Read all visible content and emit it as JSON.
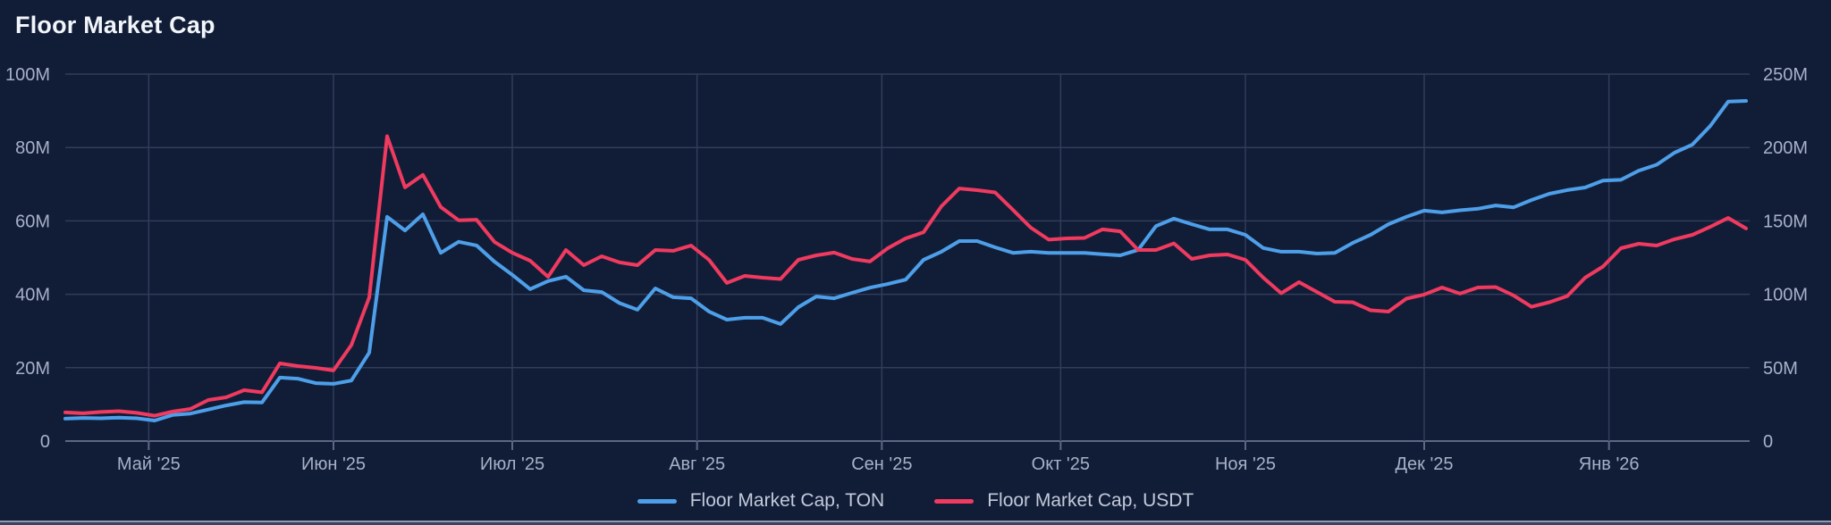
{
  "page": {
    "title": "Floor Market Cap"
  },
  "colors": {
    "background": "#111D37",
    "gridline": "#303C59",
    "axis_line": "#5C6985",
    "tick_label": "#A7B0C7",
    "title_text": "#F2F5FA",
    "legend_text": "#C2C9DA",
    "ton_line": "#4E9FE9",
    "usdt_line": "#F03A5F"
  },
  "chart_data": {
    "type": "line",
    "title": "Floor Market Cap",
    "x_type": "date",
    "grid": true,
    "legend_position": "bottom",
    "left_axis": {
      "min": 0,
      "max": 100,
      "tick_values": [
        0,
        20,
        40,
        60,
        80,
        100
      ],
      "tick_labels": [
        "0",
        "20M",
        "40M",
        "60M",
        "80M",
        "100M"
      ]
    },
    "right_axis": {
      "min": 0,
      "max": 250,
      "tick_values": [
        0,
        50,
        100,
        150,
        200,
        250
      ],
      "tick_labels": [
        "0",
        "50M",
        "100M",
        "150M",
        "200M",
        "250M"
      ]
    },
    "x_ticks": [
      {
        "label": "Май '25",
        "date": "2025-05-01"
      },
      {
        "label": "Июн '25",
        "date": "2025-06-01"
      },
      {
        "label": "Июл '25",
        "date": "2025-07-01"
      },
      {
        "label": "Авг '25",
        "date": "2025-08-01"
      },
      {
        "label": "Сен '25",
        "date": "2025-09-01"
      },
      {
        "label": "Окт '25",
        "date": "2025-10-01"
      },
      {
        "label": "Ноя '25",
        "date": "2025-11-01"
      },
      {
        "label": "Дек '25",
        "date": "2025-12-01"
      },
      {
        "label": "Янв '26",
        "date": "2026-01-01"
      }
    ],
    "dates": [
      "2025-04-17",
      "2025-04-20",
      "2025-04-23",
      "2025-04-26",
      "2025-04-29",
      "2025-05-02",
      "2025-05-05",
      "2025-05-08",
      "2025-05-11",
      "2025-05-14",
      "2025-05-17",
      "2025-05-20",
      "2025-05-23",
      "2025-05-26",
      "2025-05-29",
      "2025-06-01",
      "2025-06-04",
      "2025-06-07",
      "2025-06-10",
      "2025-06-13",
      "2025-06-16",
      "2025-06-19",
      "2025-06-22",
      "2025-06-25",
      "2025-06-28",
      "2025-07-01",
      "2025-07-04",
      "2025-07-07",
      "2025-07-10",
      "2025-07-13",
      "2025-07-16",
      "2025-07-19",
      "2025-07-22",
      "2025-07-25",
      "2025-07-28",
      "2025-07-31",
      "2025-08-03",
      "2025-08-06",
      "2025-08-09",
      "2025-08-12",
      "2025-08-15",
      "2025-08-18",
      "2025-08-21",
      "2025-08-24",
      "2025-08-27",
      "2025-08-30",
      "2025-09-02",
      "2025-09-05",
      "2025-09-08",
      "2025-09-11",
      "2025-09-14",
      "2025-09-17",
      "2025-09-20",
      "2025-09-23",
      "2025-09-26",
      "2025-09-29",
      "2025-10-02",
      "2025-10-05",
      "2025-10-08",
      "2025-10-11",
      "2025-10-14",
      "2025-10-17",
      "2025-10-20",
      "2025-10-23",
      "2025-10-26",
      "2025-10-29",
      "2025-11-01",
      "2025-11-04",
      "2025-11-07",
      "2025-11-10",
      "2025-11-13",
      "2025-11-16",
      "2025-11-19",
      "2025-11-22",
      "2025-11-25",
      "2025-11-28",
      "2025-12-01",
      "2025-12-04",
      "2025-12-07",
      "2025-12-10",
      "2025-12-13",
      "2025-12-16",
      "2025-12-19",
      "2025-12-22",
      "2025-12-25",
      "2025-12-28",
      "2025-12-31",
      "2026-01-03",
      "2026-01-06",
      "2026-01-09",
      "2026-01-12",
      "2026-01-15",
      "2026-01-18",
      "2026-01-21",
      "2026-01-24"
    ],
    "series": [
      {
        "name": "Floor Market Cap, TON",
        "axis": "left",
        "unit": "millions TON",
        "color": "#4E9FE9",
        "values": [
          6.1,
          6.3,
          6.2,
          6.4,
          6.2,
          5.6,
          7.1,
          7.5,
          8.6,
          9.7,
          10.6,
          10.5,
          17.3,
          17.0,
          15.8,
          15.6,
          16.5,
          24.1,
          61.1,
          57.4,
          61.8,
          51.3,
          54.3,
          53.3,
          48.9,
          45.3,
          41.4,
          43.6,
          44.8,
          41.1,
          40.6,
          37.6,
          35.8,
          41.6,
          39.2,
          38.9,
          35.3,
          33.1,
          33.6,
          33.6,
          31.9,
          36.5,
          39.4,
          38.9,
          40.4,
          41.8,
          42.8,
          44.0,
          49.4,
          51.6,
          54.5,
          54.5,
          52.8,
          51.3,
          51.6,
          51.3,
          51.3,
          51.3,
          50.9,
          50.6,
          52.1,
          58.6,
          60.6,
          59.1,
          57.7,
          57.7,
          56.2,
          52.6,
          51.6,
          51.6,
          51.1,
          51.3,
          54.0,
          56.2,
          59.1,
          61.1,
          62.8,
          62.3,
          62.9,
          63.3,
          64.2,
          63.7,
          65.7,
          67.4,
          68.4,
          69.1,
          71.0,
          71.2,
          73.7,
          75.3,
          78.6,
          80.8,
          85.9,
          92.5,
          92.7
        ]
      },
      {
        "name": "Floor Market Cap, USDT",
        "axis": "right",
        "unit": "millions USDT",
        "color": "#F03A5F",
        "values": [
          19.5,
          18.9,
          19.8,
          20.4,
          19.2,
          17.3,
          20.1,
          21.9,
          28.0,
          29.8,
          34.7,
          33.2,
          52.9,
          51.1,
          49.9,
          48.1,
          65.4,
          97.9,
          207.7,
          172.8,
          181.3,
          159.4,
          150.4,
          150.8,
          135.7,
          128.3,
          122.9,
          111.9,
          130.2,
          119.8,
          125.9,
          121.7,
          119.8,
          130.2,
          129.6,
          133.2,
          123.5,
          107.7,
          112.5,
          111.3,
          110.4,
          123.5,
          126.5,
          128.4,
          124.1,
          122.3,
          131.4,
          138.1,
          142.3,
          160.0,
          172.1,
          170.9,
          169.4,
          157.5,
          145.4,
          137.2,
          138.1,
          138.4,
          144.2,
          142.9,
          130.2,
          130.2,
          134.7,
          124.1,
          126.5,
          127.1,
          123.5,
          111.3,
          100.7,
          108.3,
          101.6,
          94.9,
          94.6,
          89.1,
          88.2,
          97.0,
          99.8,
          104.6,
          100.4,
          104.6,
          104.9,
          99.2,
          91.5,
          94.6,
          98.8,
          111.3,
          118.9,
          131.4,
          134.4,
          133.2,
          137.5,
          140.5,
          146.0,
          152.0,
          144.8
        ]
      }
    ]
  }
}
